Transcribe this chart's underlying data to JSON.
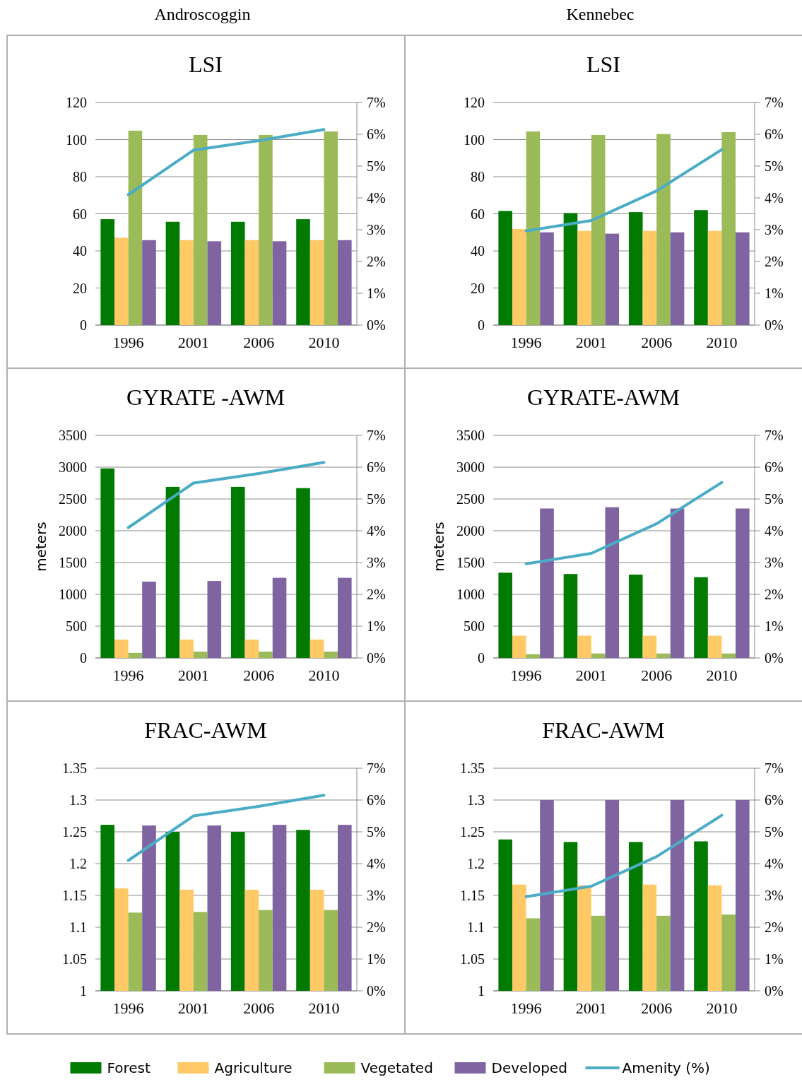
{
  "chart_data": [
    {
      "type": "bar",
      "title": "LSI",
      "annotations": [
        "Androscoggin"
      ],
      "categories": [
        "1996",
        "2001",
        "2006",
        "2010"
      ],
      "grid": "y",
      "legend": false,
      "ylim": [
        0,
        120
      ],
      "yticks": [
        0,
        20,
        40,
        60,
        80,
        100,
        120
      ],
      "y2lim": [
        0,
        7
      ],
      "y2ticks": [
        {
          "value": 0,
          "label": "0%"
        },
        {
          "value": 1,
          "label": "1%"
        },
        {
          "value": 2,
          "label": "2%"
        },
        {
          "value": 3,
          "label": "3%"
        },
        {
          "value": 4,
          "label": "4%"
        },
        {
          "value": 5,
          "label": "5%"
        },
        {
          "value": 6,
          "label": "6%"
        },
        {
          "value": 7,
          "label": "7%"
        }
      ],
      "series": [
        {
          "color": "#007a00",
          "values": [
            57.1,
            55.7,
            55.7,
            57.1
          ]
        },
        {
          "color": "#ffc966",
          "values": [
            47.1,
            45.8,
            45.8,
            45.8
          ]
        },
        {
          "color": "#9bbb59",
          "values": [
            104.8,
            102.5,
            102.5,
            104.4
          ]
        },
        {
          "color": "#8064a2",
          "values": [
            45.8,
            45.2,
            45.2,
            45.8
          ]
        },
        {
          "type": "line",
          "axis": "y2",
          "color": "#4bacc6",
          "values": [
            4.1,
            5.5,
            5.8,
            6.15
          ]
        }
      ]
    },
    {
      "type": "bar",
      "title": "LSI",
      "annotations": [
        "Kennebec"
      ],
      "categories": [
        "1996",
        "2001",
        "2006",
        "2010"
      ],
      "grid": "y",
      "legend": false,
      "ylim": [
        0,
        120
      ],
      "yticks": [
        0,
        20,
        40,
        60,
        80,
        100,
        120
      ],
      "y2lim": [
        0,
        7
      ],
      "y2ticks": [
        {
          "value": 0,
          "label": "0%"
        },
        {
          "value": 1,
          "label": "1%"
        },
        {
          "value": 2,
          "label": "2%"
        },
        {
          "value": 3,
          "label": "3%"
        },
        {
          "value": 4,
          "label": "4%"
        },
        {
          "value": 5,
          "label": "5%"
        },
        {
          "value": 6,
          "label": "6%"
        },
        {
          "value": 7,
          "label": "7%"
        }
      ],
      "series": [
        {
          "color": "#007a00",
          "values": [
            61.5,
            60.4,
            60.9,
            62.0
          ]
        },
        {
          "color": "#ffc966",
          "values": [
            51.8,
            50.8,
            50.8,
            50.8
          ]
        },
        {
          "color": "#9bbb59",
          "values": [
            104.4,
            102.5,
            103.0,
            104.0
          ]
        },
        {
          "color": "#8064a2",
          "values": [
            50.0,
            49.3,
            50.0,
            50.0
          ]
        },
        {
          "type": "line",
          "axis": "y2",
          "color": "#4bacc6",
          "values": [
            2.96,
            3.29,
            4.22,
            5.52
          ]
        }
      ]
    },
    {
      "type": "bar",
      "title": "GYRATE -AWM",
      "ylabel": "meters",
      "categories": [
        "1996",
        "2001",
        "2006",
        "2010"
      ],
      "grid": "y",
      "legend": false,
      "ylim": [
        0,
        3500
      ],
      "yticks": [
        0,
        500,
        1000,
        1500,
        2000,
        2500,
        3000,
        3500
      ],
      "y2lim": [
        0,
        7
      ],
      "y2ticks": [
        {
          "value": 0,
          "label": "0%"
        },
        {
          "value": 1,
          "label": "1%"
        },
        {
          "value": 2,
          "label": "2%"
        },
        {
          "value": 3,
          "label": "3%"
        },
        {
          "value": 4,
          "label": "4%"
        },
        {
          "value": 5,
          "label": "5%"
        },
        {
          "value": 6,
          "label": "6%"
        },
        {
          "value": 7,
          "label": "7%"
        }
      ],
      "series": [
        {
          "color": "#007a00",
          "values": [
            2980,
            2690,
            2690,
            2670
          ]
        },
        {
          "color": "#ffc966",
          "values": [
            290,
            290,
            290,
            290
          ]
        },
        {
          "color": "#9bbb59",
          "values": [
            80,
            100,
            100,
            100
          ]
        },
        {
          "color": "#8064a2",
          "values": [
            1200,
            1210,
            1260,
            1260
          ]
        },
        {
          "type": "line",
          "axis": "y2",
          "color": "#4bacc6",
          "values": [
            4.1,
            5.5,
            5.8,
            6.15
          ]
        }
      ]
    },
    {
      "type": "bar",
      "title": "GYRATE-AWM",
      "ylabel": "meters",
      "categories": [
        "1996",
        "2001",
        "2006",
        "2010"
      ],
      "grid": "y",
      "legend": false,
      "ylim": [
        0,
        3500
      ],
      "yticks": [
        0,
        500,
        1000,
        1500,
        2000,
        2500,
        3000,
        3500
      ],
      "y2lim": [
        0,
        7
      ],
      "y2ticks": [
        {
          "value": 0,
          "label": "0%"
        },
        {
          "value": 1,
          "label": "1%"
        },
        {
          "value": 2,
          "label": "2%"
        },
        {
          "value": 3,
          "label": "3%"
        },
        {
          "value": 4,
          "label": "4%"
        },
        {
          "value": 5,
          "label": "5%"
        },
        {
          "value": 6,
          "label": "6%"
        },
        {
          "value": 7,
          "label": "7%"
        }
      ],
      "series": [
        {
          "color": "#007a00",
          "values": [
            1340,
            1320,
            1310,
            1270
          ]
        },
        {
          "color": "#ffc966",
          "values": [
            350,
            350,
            350,
            350
          ]
        },
        {
          "color": "#9bbb59",
          "values": [
            60,
            70,
            70,
            70
          ]
        },
        {
          "color": "#8064a2",
          "values": [
            2350,
            2370,
            2350,
            2350
          ]
        },
        {
          "type": "line",
          "axis": "y2",
          "color": "#4bacc6",
          "values": [
            2.96,
            3.29,
            4.22,
            5.52
          ]
        }
      ]
    },
    {
      "type": "bar",
      "title": "FRAC-AWM",
      "categories": [
        "1996",
        "2001",
        "2006",
        "2010"
      ],
      "grid": "y",
      "legend": false,
      "ylim": [
        1,
        1.35
      ],
      "yticks": [
        1,
        1.05,
        1.1,
        1.15,
        1.2,
        1.25,
        1.3,
        1.35
      ],
      "y2lim": [
        0,
        7
      ],
      "y2ticks": [
        {
          "value": 0,
          "label": "0%"
        },
        {
          "value": 1,
          "label": "1%"
        },
        {
          "value": 2,
          "label": "2%"
        },
        {
          "value": 3,
          "label": "3%"
        },
        {
          "value": 4,
          "label": "4%"
        },
        {
          "value": 5,
          "label": "5%"
        },
        {
          "value": 6,
          "label": "6%"
        },
        {
          "value": 7,
          "label": "7%"
        }
      ],
      "series": [
        {
          "color": "#007a00",
          "values": [
            1.261,
            1.25,
            1.25,
            1.253
          ]
        },
        {
          "color": "#ffc966",
          "values": [
            1.161,
            1.159,
            1.159,
            1.159
          ]
        },
        {
          "color": "#9bbb59",
          "values": [
            1.123,
            1.124,
            1.127,
            1.127
          ]
        },
        {
          "color": "#8064a2",
          "values": [
            1.26,
            1.26,
            1.261,
            1.261
          ]
        },
        {
          "type": "line",
          "axis": "y2",
          "color": "#4bacc6",
          "values": [
            4.1,
            5.5,
            5.8,
            6.15
          ]
        }
      ]
    },
    {
      "type": "bar",
      "title": "FRAC-AWM",
      "categories": [
        "1996",
        "2001",
        "2006",
        "2010"
      ],
      "grid": "y",
      "legend": "bottom",
      "ylim": [
        1,
        1.35
      ],
      "yticks": [
        1,
        1.05,
        1.1,
        1.15,
        1.2,
        1.25,
        1.3,
        1.35
      ],
      "y2lim": [
        0,
        7
      ],
      "y2ticks": [
        {
          "value": 0,
          "label": "0%"
        },
        {
          "value": 1,
          "label": "1%"
        },
        {
          "value": 2,
          "label": "2%"
        },
        {
          "value": 3,
          "label": "3%"
        },
        {
          "value": 4,
          "label": "4%"
        },
        {
          "value": 5,
          "label": "5%"
        },
        {
          "value": 6,
          "label": "6%"
        },
        {
          "value": 7,
          "label": "7%"
        }
      ],
      "series": [
        {
          "name": "Forest",
          "color": "#007a00",
          "values": [
            1.238,
            1.234,
            1.234,
            1.235
          ]
        },
        {
          "name": "Agriculture",
          "color": "#ffc966",
          "values": [
            1.167,
            1.166,
            1.167,
            1.166
          ]
        },
        {
          "name": "Vegetated",
          "color": "#9bbb59",
          "values": [
            1.114,
            1.118,
            1.118,
            1.12
          ]
        },
        {
          "name": "Developed",
          "color": "#8064a2",
          "values": [
            1.3,
            1.3,
            1.3,
            1.3
          ]
        },
        {
          "name": "Amenity (%)",
          "type": "line",
          "axis": "y2",
          "color": "#4bacc6",
          "values": [
            2.96,
            3.29,
            4.22,
            5.52
          ]
        }
      ]
    }
  ]
}
